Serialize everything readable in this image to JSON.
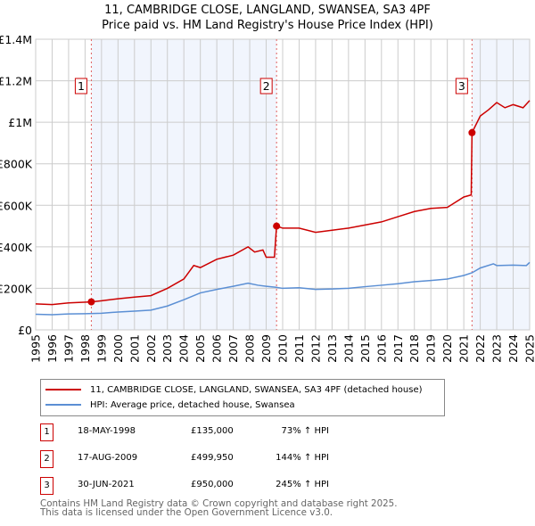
{
  "chart_data": {
    "type": "line",
    "title": "11, CAMBRIDGE CLOSE, LANGLAND, SWANSEA, SA3 4PF",
    "subtitle": "Price paid vs. HM Land Registry's House Price Index (HPI)",
    "xlim": [
      1995,
      2025
    ],
    "ylim": [
      0,
      1400000
    ],
    "x_ticks": [
      "1995",
      "1996",
      "1997",
      "1998",
      "1999",
      "2000",
      "2001",
      "2002",
      "2003",
      "2004",
      "2005",
      "2006",
      "2007",
      "2008",
      "2009",
      "2010",
      "2011",
      "2012",
      "2013",
      "2014",
      "2015",
      "2016",
      "2017",
      "2018",
      "2019",
      "2020",
      "2021",
      "2022",
      "2023",
      "2024",
      "2025"
    ],
    "y_ticks": [
      {
        "v": 0,
        "label": "£0"
      },
      {
        "v": 200000,
        "label": "£200K"
      },
      {
        "v": 400000,
        "label": "£400K"
      },
      {
        "v": 600000,
        "label": "£600K"
      },
      {
        "v": 800000,
        "label": "£800K"
      },
      {
        "v": 1000000,
        "label": "£1M"
      },
      {
        "v": 1200000,
        "label": "£1.2M"
      },
      {
        "v": 1400000,
        "label": "£1.4M"
      }
    ],
    "grid": true,
    "shaded_ranges": [
      [
        1998.38,
        2009.63
      ],
      [
        2021.5,
        2025
      ]
    ],
    "series": [
      {
        "name": "11, CAMBRIDGE CLOSE, LANGLAND, SWANSEA, SA3 4PF (detached house)",
        "color": "#cc0000",
        "x": [
          1995,
          1996,
          1997,
          1998.38,
          1999,
          2000,
          2001,
          2002,
          2003,
          2004,
          2004.6,
          2005,
          2006,
          2007,
          2007.9,
          2008.3,
          2008.8,
          2009,
          2009.5,
          2009.63,
          2010,
          2011,
          2012,
          2013,
          2014,
          2015,
          2016,
          2017,
          2018,
          2019,
          2020,
          2021,
          2021.45,
          2021.5,
          2022,
          2022.5,
          2023,
          2023.5,
          2024,
          2024.6,
          2025
        ],
        "y": [
          125000,
          122000,
          130000,
          135000,
          140000,
          150000,
          158000,
          165000,
          200000,
          245000,
          310000,
          300000,
          340000,
          360000,
          400000,
          375000,
          385000,
          350000,
          350000,
          499950,
          490000,
          490000,
          470000,
          480000,
          490000,
          505000,
          520000,
          545000,
          570000,
          585000,
          590000,
          640000,
          650000,
          950000,
          1030000,
          1060000,
          1095000,
          1070000,
          1085000,
          1070000,
          1105000
        ]
      },
      {
        "name": "HPI: Average price, detached house, Swansea",
        "color": "#5b8fd4",
        "x": [
          1995,
          1996,
          1997,
          1998,
          1999,
          2000,
          2001,
          2002,
          2003,
          2004,
          2005,
          2006,
          2007,
          2007.9,
          2008.5,
          2009,
          2009.6,
          2010,
          2011,
          2012,
          2013,
          2014,
          2015,
          2016,
          2017,
          2018,
          2019,
          2020,
          2021,
          2021.5,
          2022,
          2022.8,
          2023,
          2024,
          2024.8,
          2025
        ],
        "y": [
          75000,
          73000,
          77000,
          78000,
          80000,
          86000,
          90000,
          95000,
          115000,
          145000,
          178000,
          195000,
          210000,
          225000,
          215000,
          210000,
          205000,
          200000,
          203000,
          195000,
          197000,
          200000,
          208000,
          215000,
          222000,
          232000,
          238000,
          245000,
          262000,
          275000,
          298000,
          318000,
          310000,
          312000,
          310000,
          325000
        ]
      }
    ],
    "sales": [
      {
        "n": "1",
        "x": 1998.38,
        "y": 135000,
        "date": "18-MAY-1998",
        "price": "£135,000",
        "hpi": "73% ↑ HPI"
      },
      {
        "n": "2",
        "x": 2009.63,
        "y": 499950,
        "date": "17-AUG-2009",
        "price": "£499,950",
        "hpi": "144% ↑ HPI"
      },
      {
        "n": "3",
        "x": 2021.5,
        "y": 950000,
        "date": "30-JUN-2021",
        "price": "£950,000",
        "hpi": "245% ↑ HPI"
      }
    ]
  },
  "footer": {
    "line1": "Contains HM Land Registry data © Crown copyright and database right 2025.",
    "line2": "This data is licensed under the Open Government Licence v3.0."
  }
}
